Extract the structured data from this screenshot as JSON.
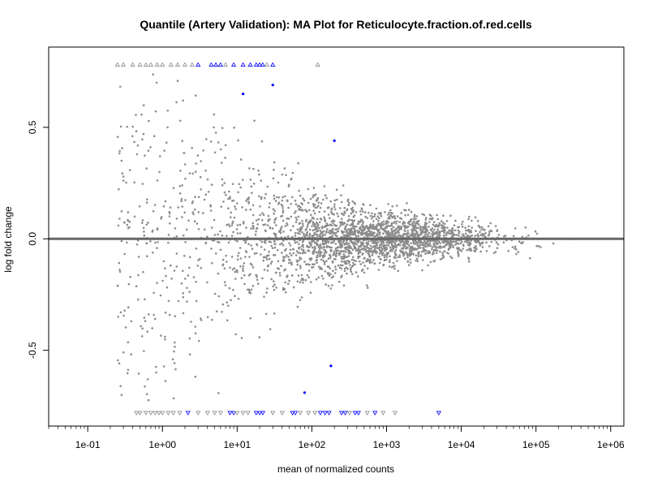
{
  "chart_data": {
    "type": "scatter",
    "title": "Quantile (Artery Validation): MA Plot for Reticulocyte.fraction.of.red.cells",
    "xlabel": "mean of normalized counts",
    "ylabel": "log fold change",
    "x_scale": "log10",
    "xlim": [
      0.03,
      1500000
    ],
    "ylim": [
      -0.84,
      0.86
    ],
    "x_ticks": [
      {
        "value": 0.1,
        "label": "1e-01"
      },
      {
        "value": 1,
        "label": "1e+00"
      },
      {
        "value": 10,
        "label": "1e+01"
      },
      {
        "value": 100,
        "label": "1e+02"
      },
      {
        "value": 1000,
        "label": "1e+03"
      },
      {
        "value": 10000,
        "label": "1e+04"
      },
      {
        "value": 100000,
        "label": "1e+05"
      },
      {
        "value": 1000000,
        "label": "1e+06"
      }
    ],
    "y_ticks": [
      {
        "value": -0.5,
        "label": "-0.5"
      },
      {
        "value": 0.0,
        "label": "0.0"
      },
      {
        "value": 0.5,
        "label": "0.5"
      }
    ],
    "reference_line": {
      "y": 0,
      "color": "#666666"
    },
    "grid": false,
    "legend": "none",
    "colors": {
      "non_significant": "#8c8c8c",
      "significant": "#0000ff"
    },
    "point_cloud": {
      "description_note": "",
      "mean_log10_peak": 3.0,
      "estimated_points": 16000
    },
    "series": [
      {
        "marker": "point",
        "color": "#0000ff",
        "points": [
          {
            "x": 12,
            "y": 0.65
          },
          {
            "x": 30,
            "y": 0.69
          },
          {
            "x": 200,
            "y": 0.44
          },
          {
            "x": 180,
            "y": -0.57
          },
          {
            "x": 80,
            "y": -0.69
          }
        ]
      },
      {
        "marker": "triangle-up",
        "color": "#0000ff",
        "points": [
          {
            "x": 3,
            "y": 0.78
          },
          {
            "x": 4.5,
            "y": 0.78
          },
          {
            "x": 5.2,
            "y": 0.78
          },
          {
            "x": 6,
            "y": 0.78
          },
          {
            "x": 9,
            "y": 0.78
          },
          {
            "x": 12,
            "y": 0.78
          },
          {
            "x": 15,
            "y": 0.78
          },
          {
            "x": 18,
            "y": 0.78
          },
          {
            "x": 20,
            "y": 0.78
          },
          {
            "x": 22,
            "y": 0.78
          },
          {
            "x": 30,
            "y": 0.78
          }
        ]
      },
      {
        "marker": "triangle-up",
        "color": "#8c8c8c",
        "points": [
          {
            "x": 0.25,
            "y": 0.78
          },
          {
            "x": 0.3,
            "y": 0.78
          },
          {
            "x": 0.4,
            "y": 0.78
          },
          {
            "x": 0.5,
            "y": 0.78
          },
          {
            "x": 0.6,
            "y": 0.78
          },
          {
            "x": 0.7,
            "y": 0.78
          },
          {
            "x": 0.85,
            "y": 0.78
          },
          {
            "x": 1.0,
            "y": 0.78
          },
          {
            "x": 1.3,
            "y": 0.78
          },
          {
            "x": 1.6,
            "y": 0.78
          },
          {
            "x": 2.0,
            "y": 0.78
          },
          {
            "x": 2.5,
            "y": 0.78
          },
          {
            "x": 7,
            "y": 0.78
          },
          {
            "x": 25,
            "y": 0.78
          },
          {
            "x": 120,
            "y": 0.78
          }
        ]
      },
      {
        "marker": "triangle-down",
        "color": "#0000ff",
        "points": [
          {
            "x": 2.2,
            "y": -0.78
          },
          {
            "x": 8,
            "y": -0.78
          },
          {
            "x": 9,
            "y": -0.78
          },
          {
            "x": 18,
            "y": -0.78
          },
          {
            "x": 20,
            "y": -0.78
          },
          {
            "x": 22,
            "y": -0.78
          },
          {
            "x": 55,
            "y": -0.78
          },
          {
            "x": 60,
            "y": -0.78
          },
          {
            "x": 130,
            "y": -0.78
          },
          {
            "x": 150,
            "y": -0.78
          },
          {
            "x": 170,
            "y": -0.78
          },
          {
            "x": 250,
            "y": -0.78
          },
          {
            "x": 280,
            "y": -0.78
          },
          {
            "x": 380,
            "y": -0.78
          },
          {
            "x": 420,
            "y": -0.78
          },
          {
            "x": 700,
            "y": -0.78
          },
          {
            "x": 5000,
            "y": -0.78
          }
        ]
      },
      {
        "marker": "triangle-down",
        "color": "#8c8c8c",
        "points": [
          {
            "x": 0.45,
            "y": -0.78
          },
          {
            "x": 0.5,
            "y": -0.78
          },
          {
            "x": 0.6,
            "y": -0.78
          },
          {
            "x": 0.7,
            "y": -0.78
          },
          {
            "x": 0.8,
            "y": -0.78
          },
          {
            "x": 0.9,
            "y": -0.78
          },
          {
            "x": 1.0,
            "y": -0.78
          },
          {
            "x": 1.2,
            "y": -0.78
          },
          {
            "x": 1.4,
            "y": -0.78
          },
          {
            "x": 1.7,
            "y": -0.78
          },
          {
            "x": 3,
            "y": -0.78
          },
          {
            "x": 4,
            "y": -0.78
          },
          {
            "x": 5,
            "y": -0.78
          },
          {
            "x": 6,
            "y": -0.78
          },
          {
            "x": 10,
            "y": -0.78
          },
          {
            "x": 12,
            "y": -0.78
          },
          {
            "x": 14,
            "y": -0.78
          },
          {
            "x": 30,
            "y": -0.78
          },
          {
            "x": 40,
            "y": -0.78
          },
          {
            "x": 70,
            "y": -0.78
          },
          {
            "x": 90,
            "y": -0.78
          },
          {
            "x": 110,
            "y": -0.78
          },
          {
            "x": 320,
            "y": -0.78
          },
          {
            "x": 550,
            "y": -0.78
          },
          {
            "x": 900,
            "y": -0.78
          },
          {
            "x": 1300,
            "y": -0.78
          }
        ]
      }
    ]
  }
}
